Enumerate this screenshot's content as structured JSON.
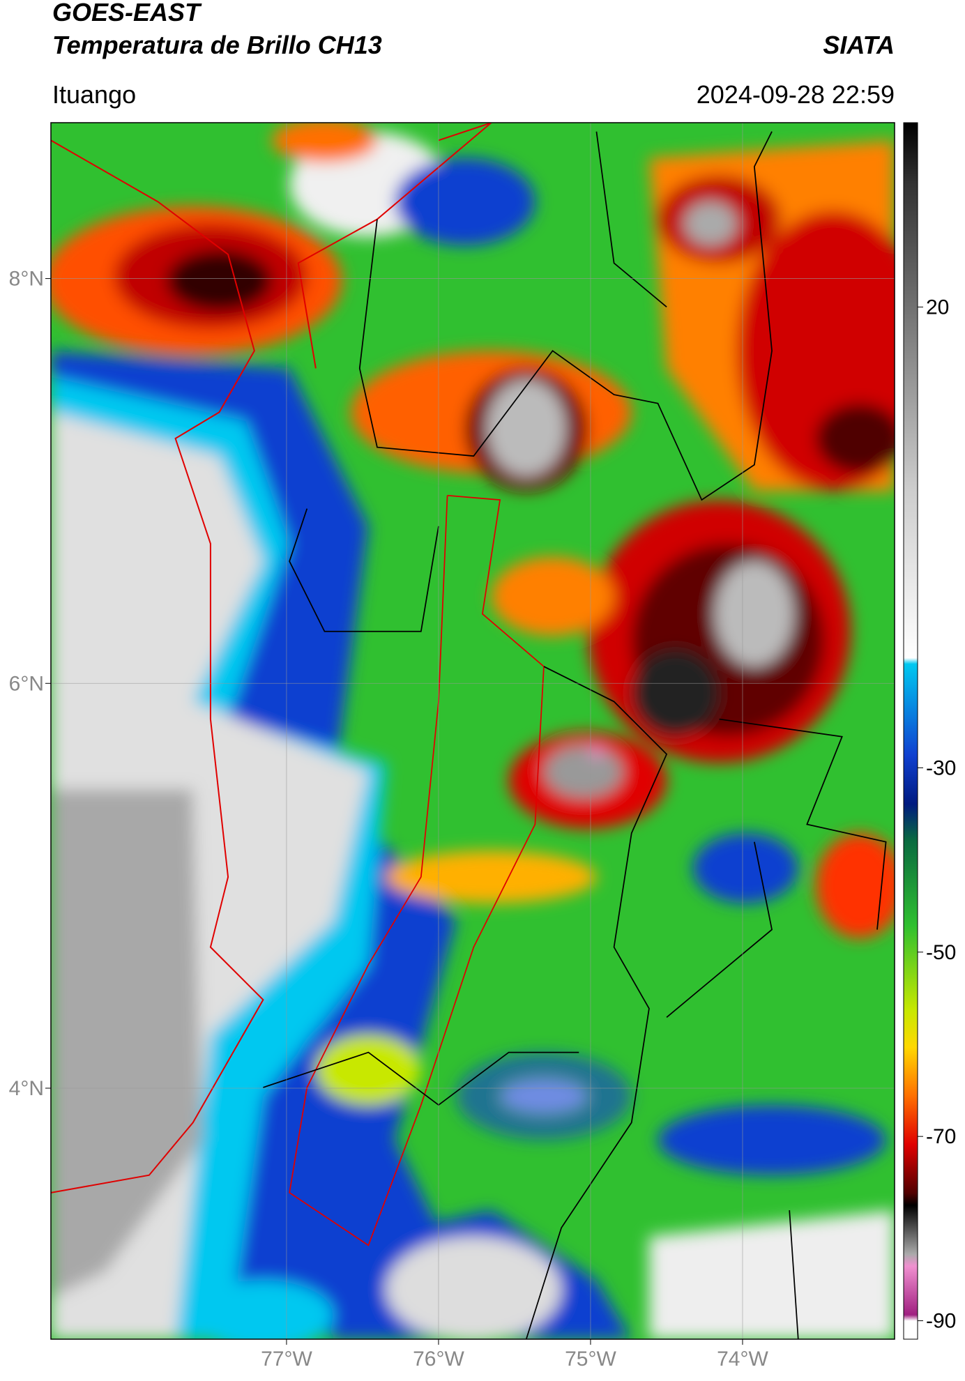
{
  "header": {
    "title": "GOES-EAST",
    "subtitle": "Temperatura de Brillo CH13",
    "source": "SIATA",
    "location": "Ituango",
    "datetime": "2024-09-28 22:59"
  },
  "map": {
    "xlim": [
      -78.55,
      -73.0
    ],
    "ylim": [
      2.76,
      8.77
    ],
    "xticks": [
      {
        "value": -77,
        "label": "77°W"
      },
      {
        "value": -76,
        "label": "76°W"
      },
      {
        "value": -75,
        "label": "75°W"
      },
      {
        "value": -74,
        "label": "74°W"
      }
    ],
    "yticks": [
      {
        "value": 8,
        "label": "8°N"
      },
      {
        "value": 6,
        "label": "6°N"
      },
      {
        "value": 4,
        "label": "4°N"
      }
    ],
    "grid": true
  },
  "colorbar": {
    "lim": [
      -92,
      40
    ],
    "ticks": [
      20,
      -30,
      -50,
      -70,
      -90
    ]
  }
}
